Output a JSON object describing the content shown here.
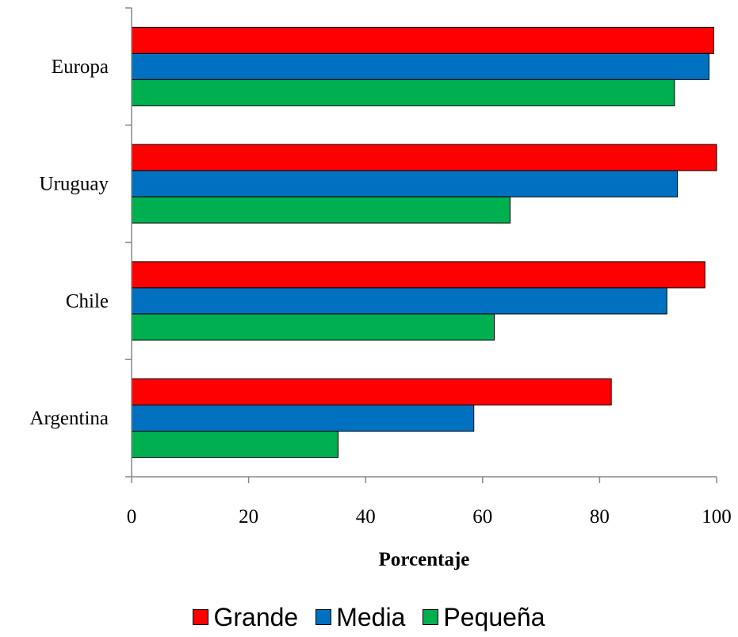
{
  "chart_data": {
    "type": "bar",
    "orientation": "horizontal",
    "categories": [
      "Argentina",
      "Chile",
      "Uruguay",
      "Europa"
    ],
    "series": [
      {
        "name": "Grande",
        "color": "#FF0000",
        "values": [
          82,
          98,
          100,
          99.5
        ]
      },
      {
        "name": "Media",
        "color": "#0070C0",
        "values": [
          58.5,
          91.5,
          93.3,
          98.7
        ]
      },
      {
        "name": "Pequeña",
        "color": "#00B050",
        "values": [
          35.3,
          62,
          64.7,
          92.8
        ]
      }
    ],
    "xlabel": "Porcentaje",
    "ylabel": "",
    "xlim": [
      0,
      100
    ],
    "xticks": [
      "0",
      "20",
      "40",
      "60",
      "80",
      "100"
    ],
    "grid": false,
    "legend_position": "bottom"
  }
}
